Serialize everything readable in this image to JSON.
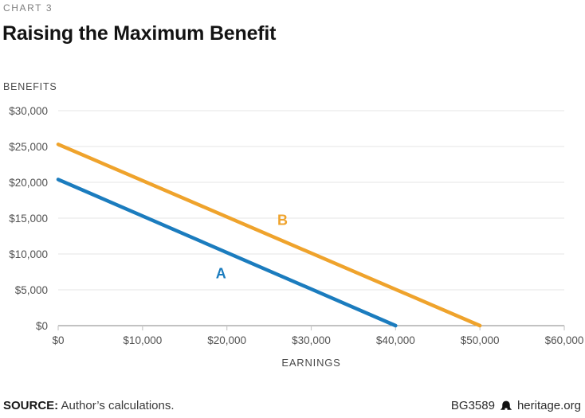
{
  "header": {
    "eyebrow": "CHART 3",
    "title": "Raising the Maximum Benefit"
  },
  "footer": {
    "source_label": "SOURCE:",
    "source_text": " Author’s calculations.",
    "doc_id": "BG3589",
    "site": "heritage.org",
    "logo_icon": "liberty-bell-icon"
  },
  "colors": {
    "series_a": "#1b7cbe",
    "series_b": "#efa32c",
    "grid": "#e9e9e9",
    "axis": "#9e9e9e",
    "tick": "#c8c8c8",
    "tick_label": "#525252",
    "axis_name": "#4a4a4a"
  },
  "chart_data": {
    "type": "line",
    "title": "Raising the Maximum Benefit",
    "xlabel": "EARNINGS",
    "ylabel": "BENEFITS",
    "xlim": [
      0,
      60000
    ],
    "ylim": [
      0,
      30000
    ],
    "x_ticks": [
      0,
      10000,
      20000,
      30000,
      40000,
      50000,
      60000
    ],
    "y_ticks": [
      0,
      5000,
      10000,
      15000,
      20000,
      25000,
      30000
    ],
    "tick_prefix": "$",
    "grid": "horizontal",
    "legend": "inline-labels",
    "series": [
      {
        "name": "A",
        "color": "#1b7cbe",
        "points": [
          [
            0,
            20400
          ],
          [
            40000,
            0
          ]
        ],
        "label_pos": [
          19300,
          7300
        ]
      },
      {
        "name": "B",
        "color": "#efa32c",
        "points": [
          [
            0,
            25300
          ],
          [
            50000,
            0
          ]
        ],
        "label_pos": [
          26600,
          14700
        ]
      }
    ]
  }
}
